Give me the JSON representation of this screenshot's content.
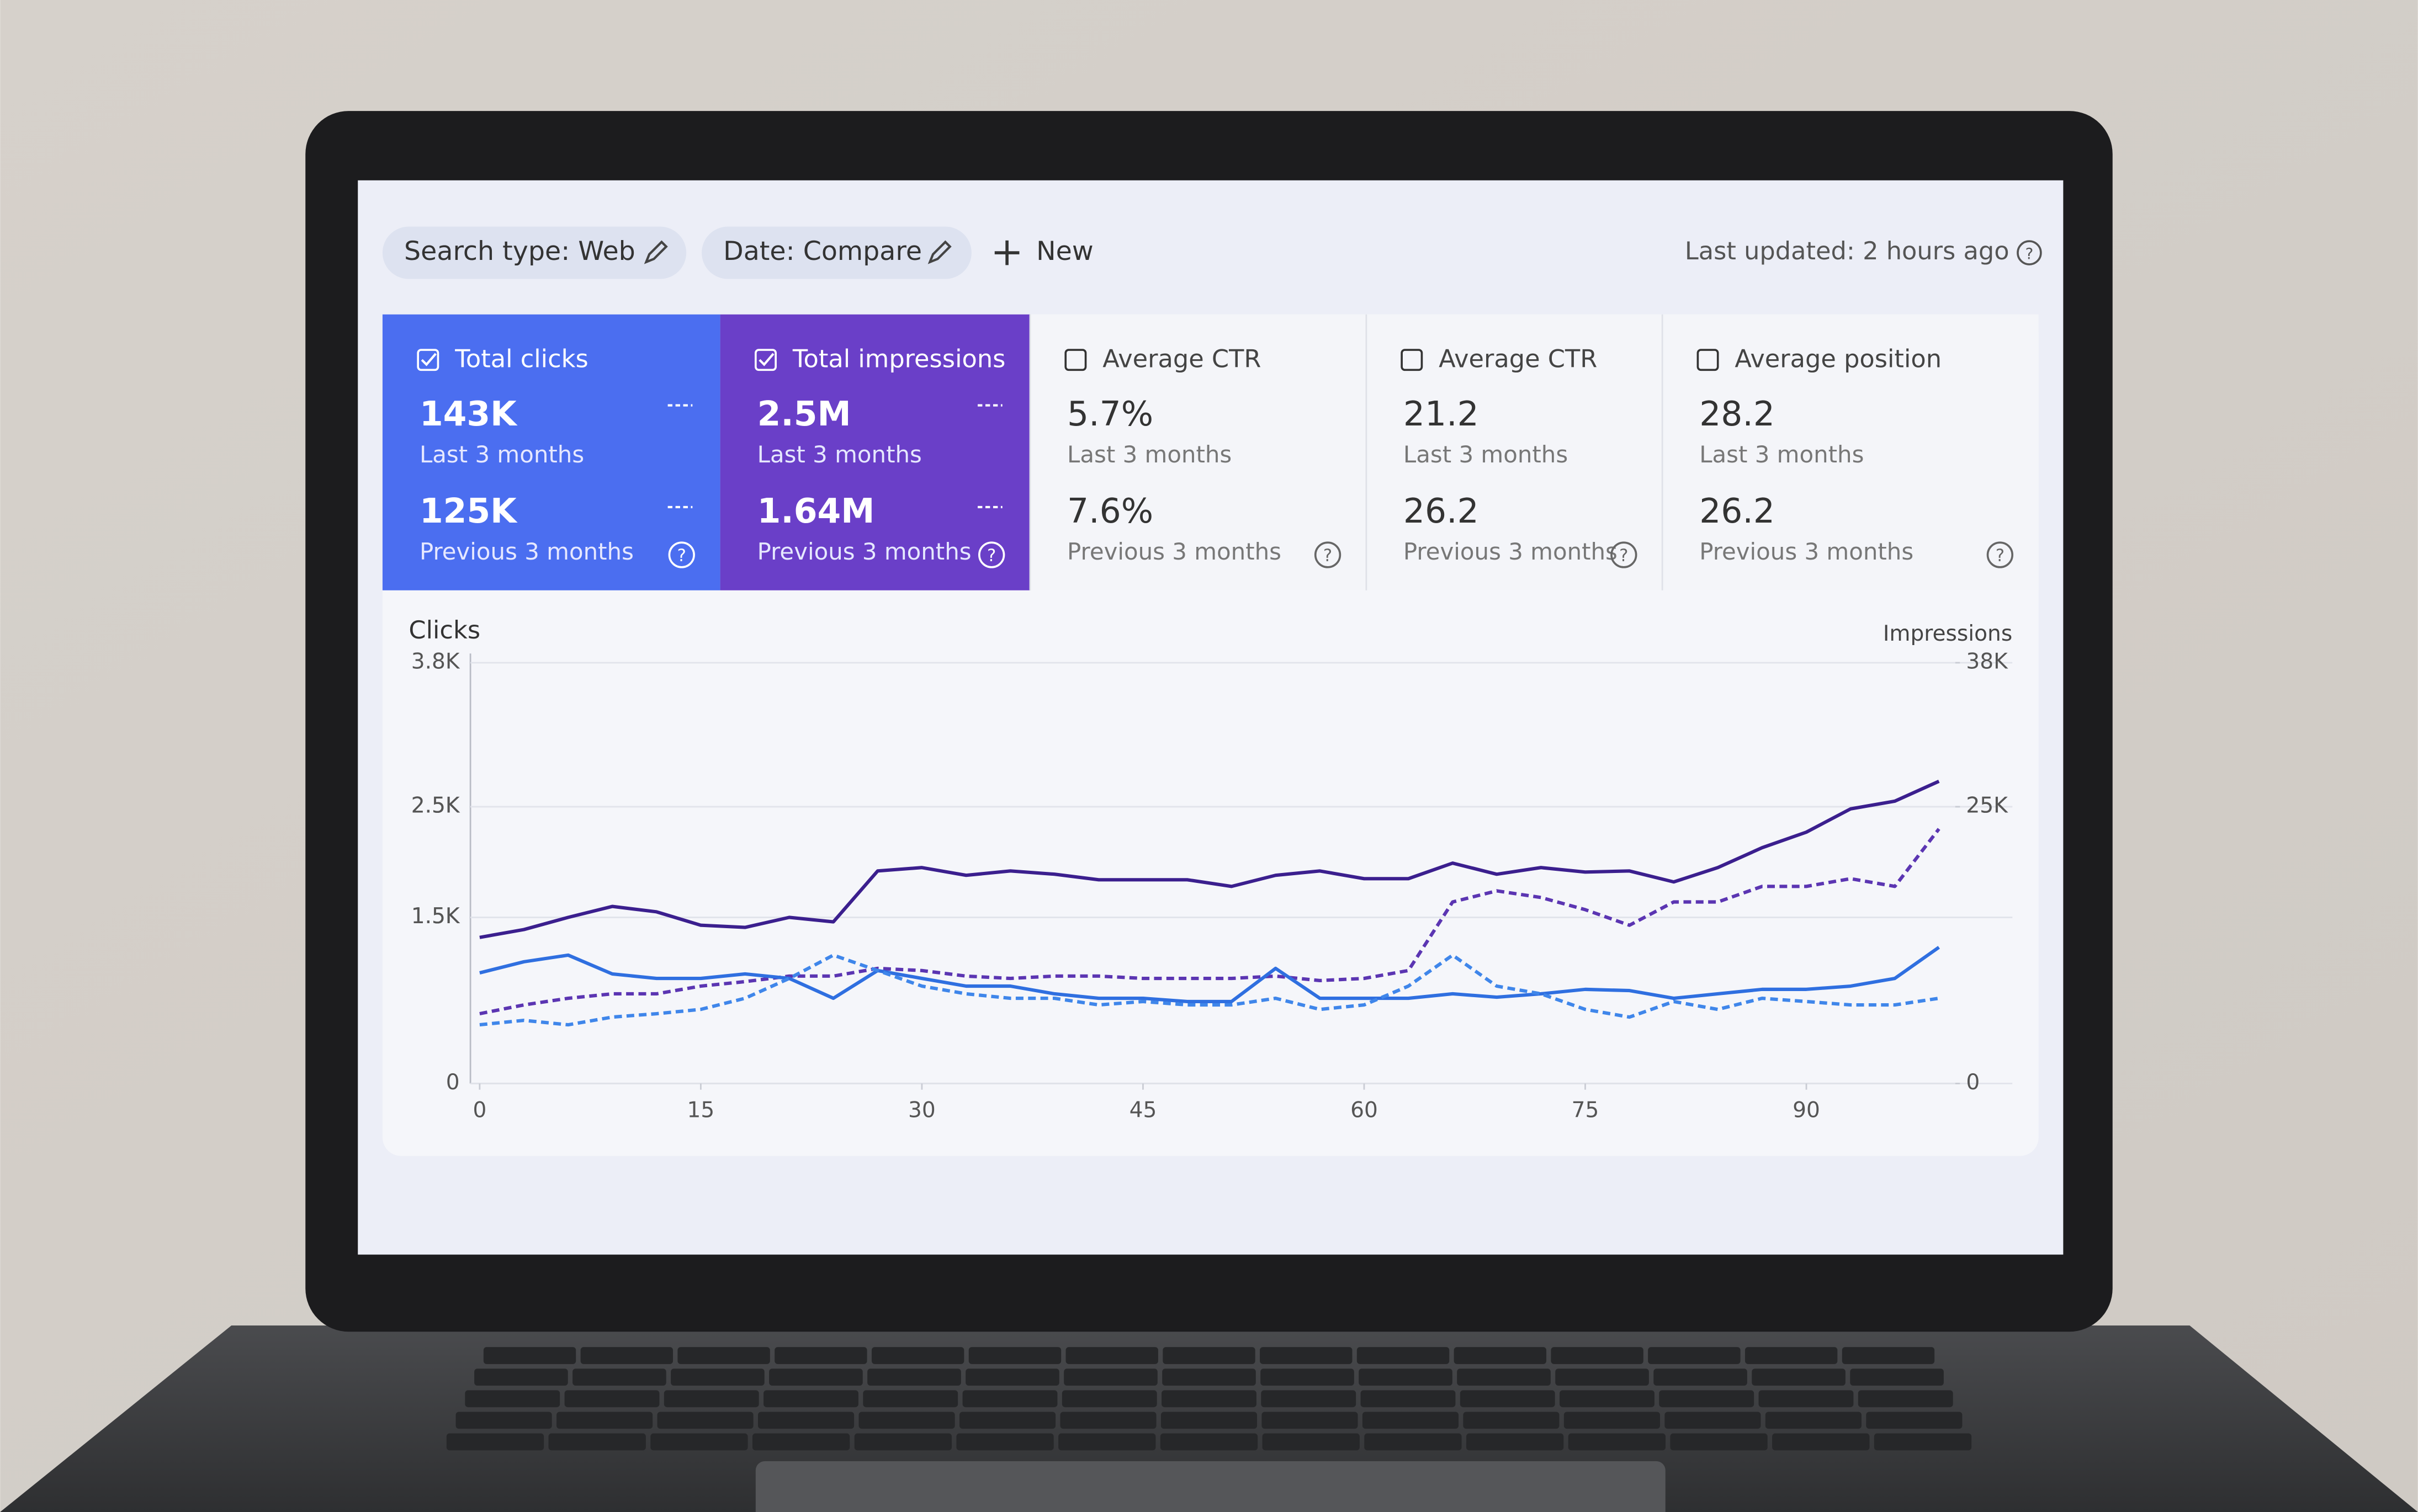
{
  "header": {
    "filters": [
      "Search type: Web",
      "Date: Compare"
    ],
    "new_button": "New",
    "last_updated": "Last updated: 2 hours ago"
  },
  "cards": [
    {
      "label": "Total clicks",
      "current": "143K",
      "current_period": "Last 3 months",
      "previous": "125K",
      "previous_period": "Previous 3 months",
      "checked": true,
      "color": "#4b6ef0"
    },
    {
      "label": "Total impressions",
      "current": "2.5M",
      "current_period": "Last 3 months",
      "previous": "1.64M",
      "previous_period": "Previous 3 months",
      "checked": true,
      "color": "#6a3fc8"
    },
    {
      "label": "Average CTR",
      "current": "5.7%",
      "current_period": "Last 3 months",
      "previous": "7.6%",
      "previous_period": "Previous 3 months",
      "checked": false,
      "color": "#f4f5f9"
    },
    {
      "label": "Average CTR",
      "current": "21.2",
      "current_period": "Last 3 months",
      "previous": "26.2",
      "previous_period": "Previous 3 months",
      "checked": false,
      "color": "#f4f5f9"
    },
    {
      "label": "Average position",
      "current": "28.2",
      "current_period": "Last 3 months",
      "previous": "26.2",
      "previous_period": "Previous 3 months",
      "checked": false,
      "color": "#f4f5f9"
    }
  ],
  "chart_data": {
    "type": "line",
    "y_label": "Clicks",
    "y2_label": "Impressions",
    "x": [
      0,
      3,
      6,
      9,
      12,
      15,
      18,
      21,
      24,
      27,
      30,
      33,
      36,
      39,
      42,
      45,
      48,
      51,
      54,
      57,
      60,
      63,
      66,
      69,
      72,
      75,
      78,
      81,
      84,
      87,
      90,
      93,
      96,
      99
    ],
    "xlim": [
      0,
      100
    ],
    "xticks": [
      0,
      15,
      30,
      45,
      60,
      75,
      90
    ],
    "ylim": [
      0,
      3800
    ],
    "yticks": [
      0,
      {
        "value": 1500,
        "label": "1.5K"
      },
      {
        "value": 1500,
        "label": "1.5K"
      },
      {
        "value": 2500,
        "label": "2.5K"
      },
      {
        "value": 2500,
        "label": "2.5K"
      },
      {
        "value": 3800,
        "label": "3.8K"
      }
    ],
    "y2lim": [
      0,
      38000
    ],
    "y2ticks": [
      0,
      {
        "value": 25000,
        "label": "25K"
      },
      {
        "value": 25000,
        "label": "25K"
      },
      {
        "value": 38000,
        "label": "38K"
      }
    ],
    "grid": true,
    "series": [
      {
        "color": "#3b1f8e",
        "axis": "y2",
        "dashed": false,
        "values": [
          13200,
          13900,
          15000,
          16000,
          15500,
          14300,
          14100,
          15000,
          14600,
          19200,
          19500,
          18800,
          19200,
          18900,
          18400,
          18400,
          18400,
          17800,
          18800,
          19200,
          18500,
          18500,
          19900,
          18900,
          19500,
          19100,
          19200,
          18200,
          19500,
          21300,
          22700,
          24800,
          25500,
          27300
        ]
      },
      {
        "color": "#5b35b2",
        "axis": "y2",
        "dashed": true,
        "values": [
          6300,
          7100,
          7700,
          8100,
          8100,
          8800,
          9200,
          9700,
          9700,
          10400,
          10200,
          9700,
          9500,
          9700,
          9700,
          9500,
          9500,
          9500,
          9700,
          9300,
          9500,
          10200,
          16400,
          17400,
          16800,
          15700,
          14300,
          16400,
          16400,
          17800,
          17800,
          18500,
          17800,
          23000
        ]
      },
      {
        "color": "#2f6fe0",
        "axis": "y",
        "dashed": false,
        "values": [
          1000,
          1100,
          1160,
          990,
          950,
          950,
          990,
          950,
          770,
          1020,
          950,
          880,
          880,
          810,
          770,
          770,
          740,
          740,
          1040,
          770,
          770,
          770,
          810,
          780,
          810,
          850,
          840,
          770,
          810,
          850,
          850,
          880,
          950,
          1230
        ]
      },
      {
        "color": "#3f86ea",
        "axis": "y",
        "dashed": true,
        "values": [
          530,
          570,
          530,
          600,
          630,
          670,
          770,
          950,
          1160,
          1020,
          880,
          810,
          770,
          770,
          710,
          740,
          710,
          710,
          770,
          670,
          710,
          880,
          1160,
          880,
          810,
          670,
          600,
          740,
          670,
          770,
          740,
          710,
          710,
          770
        ]
      }
    ]
  }
}
